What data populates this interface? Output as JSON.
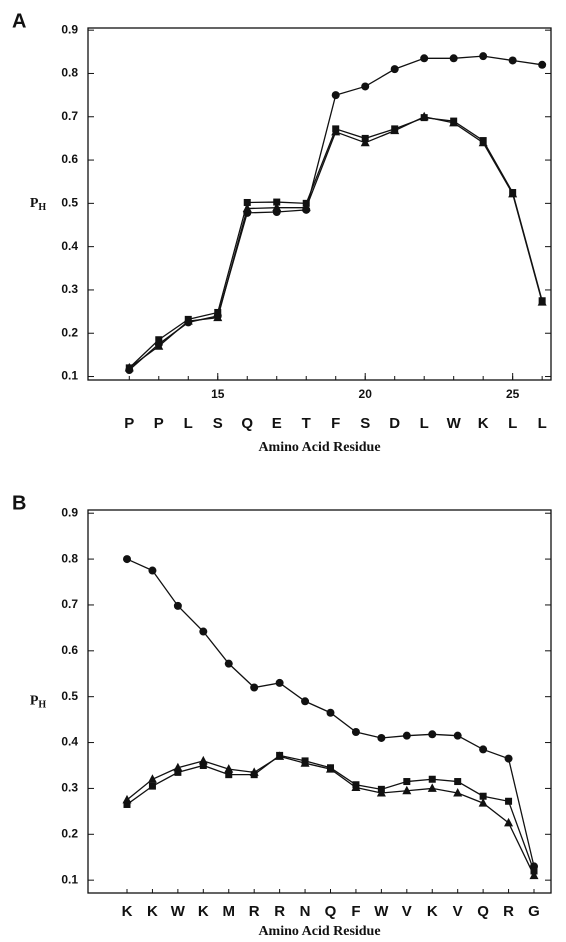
{
  "chart_data": [
    {
      "type": "line",
      "panel_label": "A",
      "ylabel": {
        "main": "P",
        "sub": "H"
      },
      "xlabel": "Amino Acid Residue",
      "x": [
        12,
        13,
        14,
        15,
        16,
        17,
        18,
        19,
        20,
        21,
        22,
        23,
        24,
        25,
        26
      ],
      "categories": [
        "P",
        "P",
        "L",
        "S",
        "Q",
        "E",
        "T",
        "F",
        "S",
        "D",
        "L",
        "W",
        "K",
        "L",
        "L"
      ],
      "xlim": [
        10.6,
        26.3
      ],
      "xticks": [
        15,
        20,
        25
      ],
      "ylim": [
        0.092,
        0.905
      ],
      "yticks": [
        0.1,
        0.2,
        0.3,
        0.4,
        0.5,
        0.6,
        0.7,
        0.8,
        0.9
      ],
      "series": [
        {
          "marker": "circle",
          "color": "#111111",
          "values": [
            0.115,
            0.175,
            0.225,
            0.24,
            0.478,
            0.48,
            0.485,
            0.75,
            0.77,
            0.81,
            0.835,
            0.835,
            0.84,
            0.83,
            0.82
          ]
        },
        {
          "marker": "square",
          "color": "#111111",
          "values": [
            0.12,
            0.185,
            0.232,
            0.248,
            0.502,
            0.503,
            0.5,
            0.672,
            0.65,
            0.672,
            0.698,
            0.69,
            0.645,
            0.525,
            0.275
          ]
        },
        {
          "marker": "triangle",
          "color": "#111111",
          "values": [
            0.12,
            0.17,
            0.228,
            0.236,
            0.488,
            0.49,
            0.49,
            0.665,
            0.64,
            0.668,
            0.7,
            0.686,
            0.64,
            0.522,
            0.272
          ]
        }
      ]
    },
    {
      "type": "line",
      "panel_label": "B",
      "ylabel": {
        "main": "P",
        "sub": "H"
      },
      "xlabel": "Amino Acid Residue",
      "categories": [
        "K",
        "K",
        "W",
        "K",
        "M",
        "R",
        "R",
        "N",
        "Q",
        "F",
        "W",
        "V",
        "K",
        "V",
        "Q",
        "R",
        "G"
      ],
      "ylim": [
        0.072,
        0.907
      ],
      "yticks": [
        0.1,
        0.2,
        0.3,
        0.4,
        0.5,
        0.6,
        0.7,
        0.8,
        0.9
      ],
      "series": [
        {
          "marker": "circle",
          "color": "#111111",
          "values": [
            0.8,
            0.775,
            0.698,
            0.642,
            0.572,
            0.52,
            0.53,
            0.49,
            0.465,
            0.423,
            0.41,
            0.415,
            0.418,
            0.415,
            0.385,
            0.365,
            0.13
          ]
        },
        {
          "marker": "square",
          "color": "#111111",
          "values": [
            0.265,
            0.305,
            0.335,
            0.35,
            0.33,
            0.33,
            0.372,
            0.36,
            0.345,
            0.308,
            0.298,
            0.315,
            0.32,
            0.315,
            0.283,
            0.272,
            0.12
          ]
        },
        {
          "marker": "triangle",
          "color": "#111111",
          "values": [
            0.275,
            0.32,
            0.345,
            0.36,
            0.342,
            0.335,
            0.37,
            0.355,
            0.342,
            0.302,
            0.29,
            0.295,
            0.3,
            0.29,
            0.268,
            0.225,
            0.11
          ]
        }
      ]
    }
  ]
}
